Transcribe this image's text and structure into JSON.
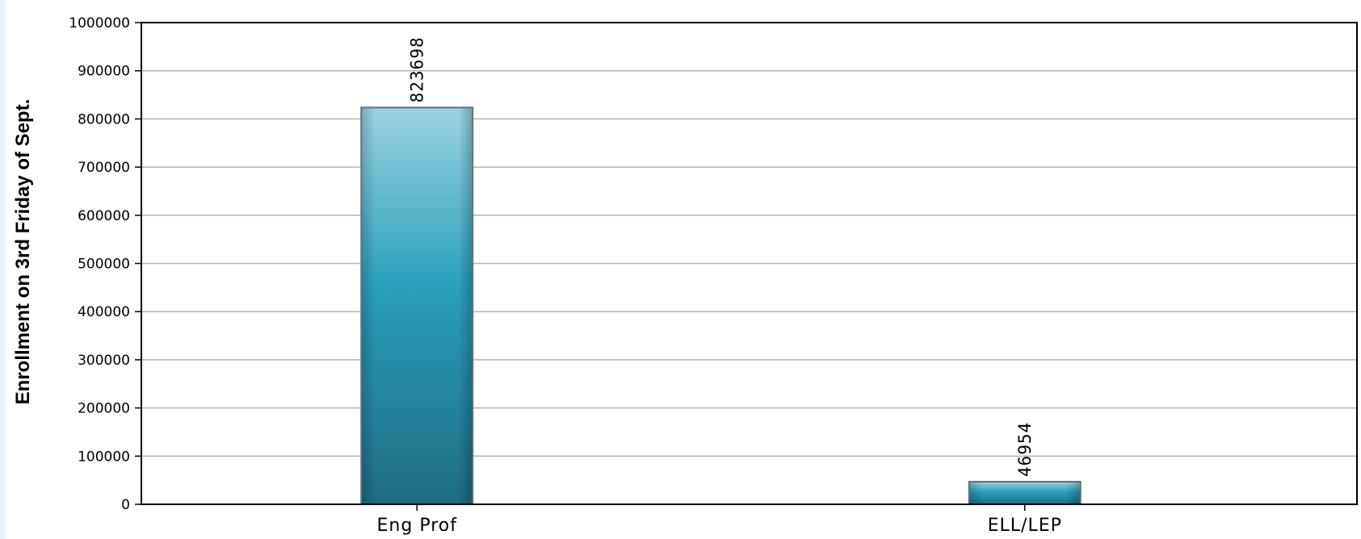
{
  "chart_data": {
    "type": "bar",
    "title": "",
    "xlabel": "",
    "ylabel": "Enrollment on 3rd Friday of Sept.",
    "categories": [
      "Eng Prof",
      "ELL/LEP"
    ],
    "values": [
      823698,
      46954
    ],
    "data_labels": [
      "823698",
      "46954"
    ],
    "ylim": [
      0,
      1000000
    ],
    "yticks": [
      0,
      100000,
      200000,
      300000,
      400000,
      500000,
      600000,
      700000,
      800000,
      900000,
      1000000
    ],
    "ytick_labels": [
      "0",
      "100000",
      "200000",
      "300000",
      "400000",
      "500000",
      "600000",
      "700000",
      "800000",
      "900000",
      "1000000"
    ],
    "grid": true,
    "legend": "none",
    "colors": {
      "bar_top": "#9ad3e0",
      "bar_mid": "#2a9fbd",
      "bar_bottom": "#1e6b82",
      "bar_border": "#5d7479",
      "grid": "#b4b4b4",
      "axis": "#000000",
      "side_strip": "#e4f4f8"
    }
  }
}
